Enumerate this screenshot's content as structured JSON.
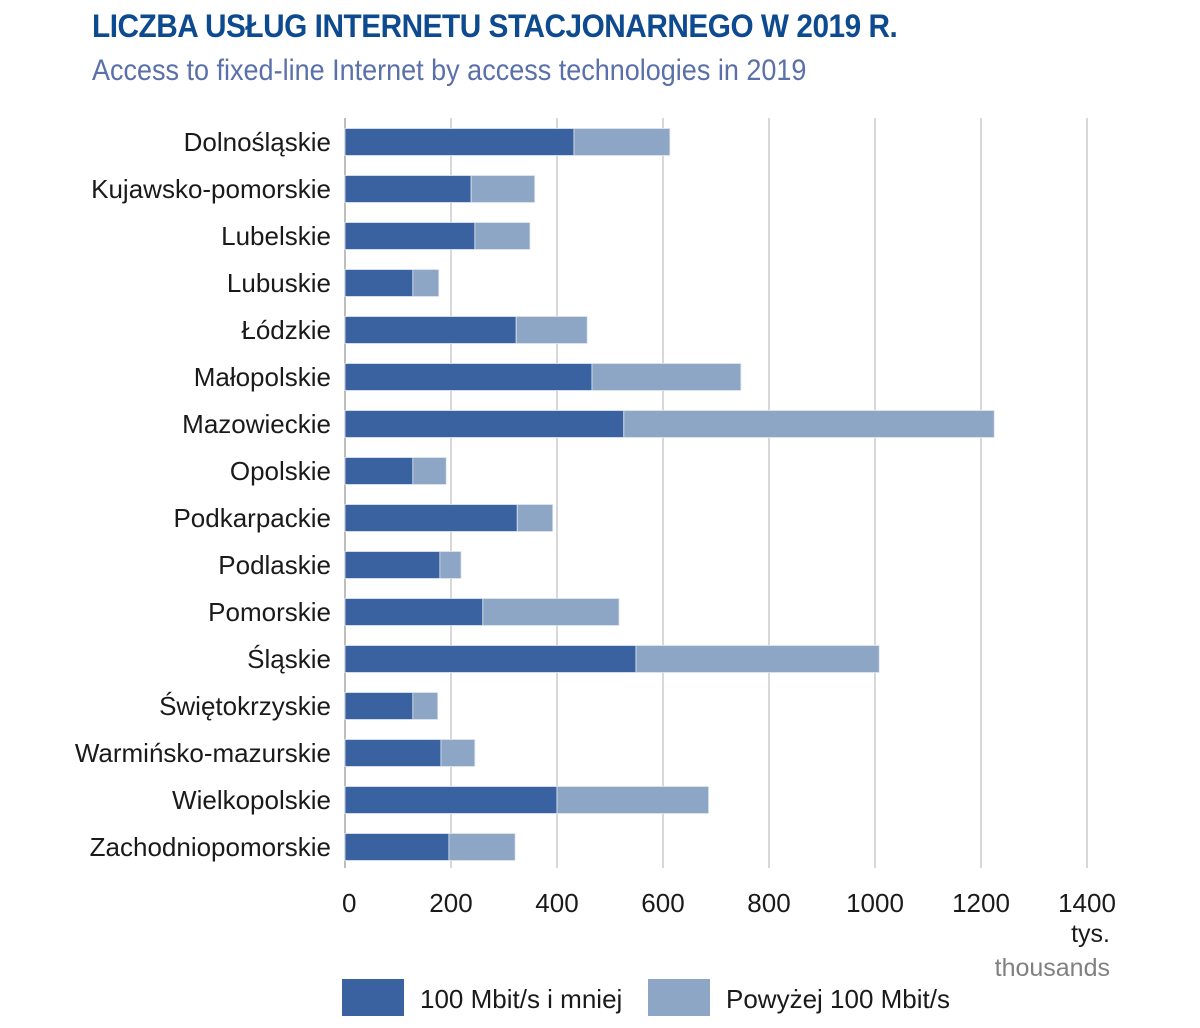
{
  "chart_data": {
    "type": "bar",
    "orientation": "horizontal",
    "stacked": true,
    "title": "LICZBA USŁUG INTERNETU STACJONARNEGO W 2019 R.",
    "subtitle": "Access to fixed-line Internet by access technologies in 2019",
    "xlabel": "",
    "ylabel": "",
    "unit_label": "tys.",
    "unit_label_en": "thousands",
    "xlim": [
      0,
      1400
    ],
    "xticks": [
      "0",
      "200",
      "400",
      "600",
      "800",
      "1000",
      "1200",
      "1400"
    ],
    "grid": true,
    "legend_position": "bottom",
    "categories": [
      "Dolnośląskie",
      "Kujawsko-pomorskie",
      "Lubelskie",
      "Lubuskie",
      "Łódzkie",
      "Małopolskie",
      "Mazowieckie",
      "Opolskie",
      "Podkarpackie",
      "Podlaskie",
      "Pomorskie",
      "Śląskie",
      "Świętokrzyskie",
      "Warmińsko-mazurskie",
      "Wielkopolskie",
      "Zachodniopomorskie"
    ],
    "series": [
      {
        "name": "100 Mbit/s i mniej",
        "color": "#3a62a0",
        "values": [
          432,
          238,
          245,
          128,
          323,
          466,
          526,
          128,
          325,
          179,
          260,
          549,
          128,
          181,
          400,
          196
        ]
      },
      {
        "name": "Powyżej 100 Mbit/s",
        "color": "#8ea6c6",
        "values": [
          181,
          120,
          104,
          49,
          134,
          281,
          699,
          63,
          67,
          40,
          257,
          459,
          47,
          64,
          286,
          125
        ]
      }
    ]
  }
}
